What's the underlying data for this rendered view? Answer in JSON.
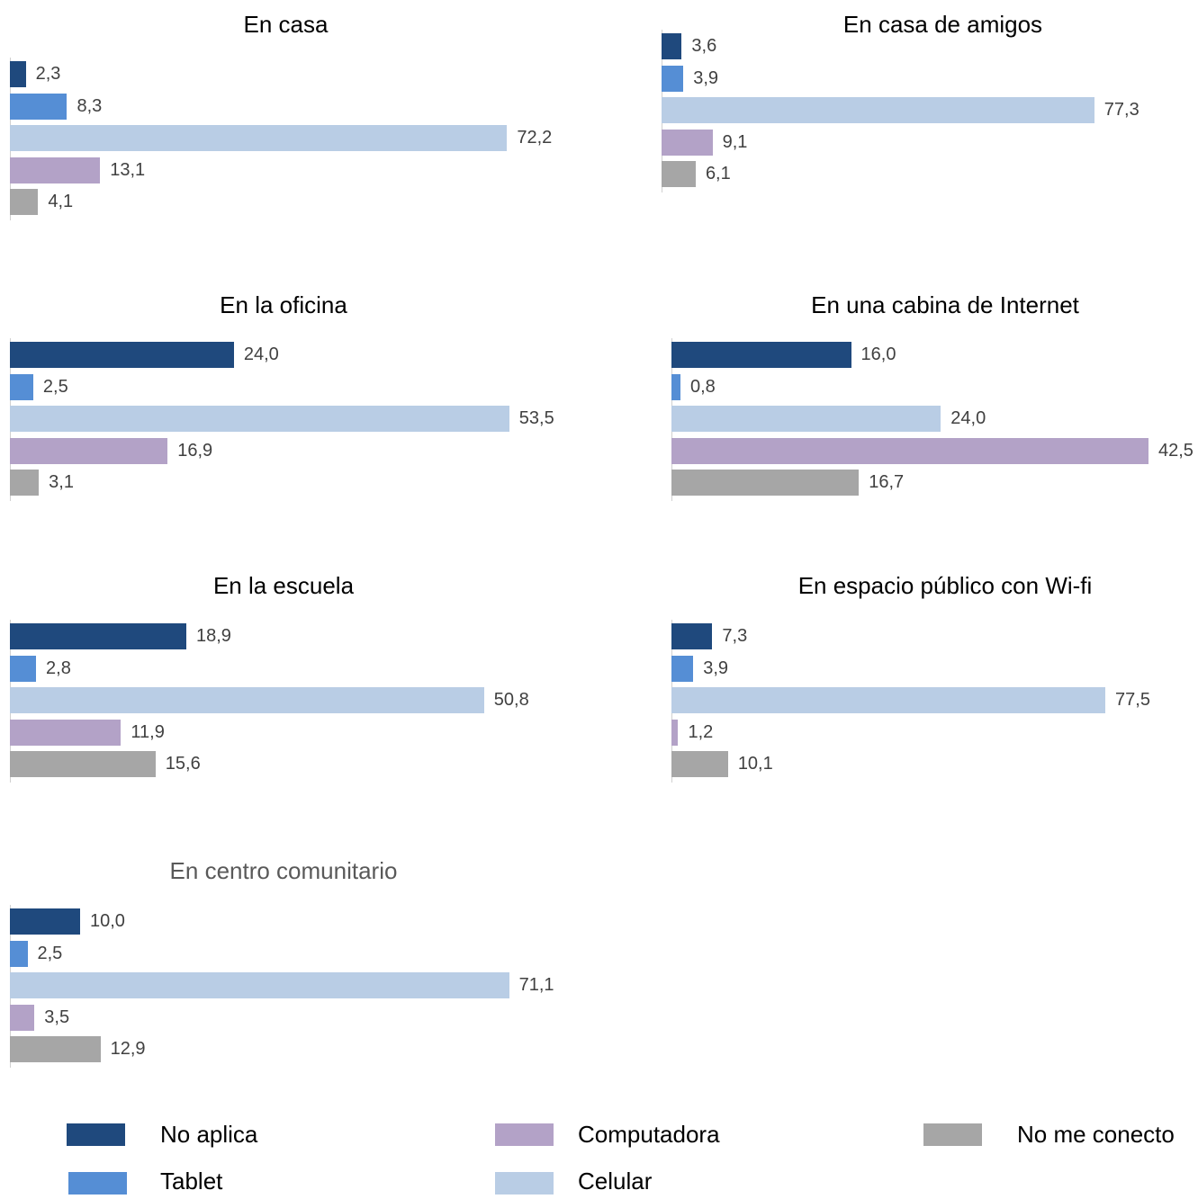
{
  "colors": {
    "No aplica": "#1f497d",
    "Tablet": "#558ed5",
    "Celular": "#b9cde5",
    "Computadora": "#b3a2c7",
    "No me conecto": "#a6a6a6"
  },
  "legend": {
    "items": [
      {
        "label": "No aplica",
        "color": "#1f497d"
      },
      {
        "label": "Tablet",
        "color": "#558ed5"
      },
      {
        "label": "Computadora",
        "color": "#b3a2c7"
      },
      {
        "label": "Celular",
        "color": "#b9cde5"
      },
      {
        "label": "No me conecto",
        "color": "#a6a6a6"
      }
    ]
  },
  "chart_data": [
    {
      "type": "bar",
      "orientation": "horizontal",
      "title": "En casa",
      "categories": [
        "No aplica",
        "Tablet",
        "Celular",
        "Computadora",
        "No me conecto"
      ],
      "values": [
        2.3,
        8.3,
        72.2,
        13.1,
        4.1
      ],
      "labels": [
        "2,3",
        "8,3",
        "72,2",
        "13,1",
        "4,1"
      ]
    },
    {
      "type": "bar",
      "orientation": "horizontal",
      "title": "En casa de amigos",
      "categories": [
        "No aplica",
        "Tablet",
        "Celular",
        "Computadora",
        "No me conecto"
      ],
      "values": [
        3.6,
        3.9,
        77.3,
        9.1,
        6.1
      ],
      "labels": [
        "3,6",
        "3,9",
        "77,3",
        "9,1",
        "6,1"
      ]
    },
    {
      "type": "bar",
      "orientation": "horizontal",
      "title": "En la oficina",
      "categories": [
        "No aplica",
        "Tablet",
        "Celular",
        "Computadora",
        "No me conecto"
      ],
      "values": [
        24.0,
        2.5,
        53.5,
        16.9,
        3.1
      ],
      "labels": [
        "24,0",
        "2,5",
        "53,5",
        "16,9",
        "3,1"
      ]
    },
    {
      "type": "bar",
      "orientation": "horizontal",
      "title": "En una cabina de Internet",
      "categories": [
        "No aplica",
        "Tablet",
        "Celular",
        "Computadora",
        "No me conecto"
      ],
      "values": [
        16.0,
        0.8,
        24.0,
        42.5,
        16.7
      ],
      "labels": [
        "16,0",
        "0,8",
        "24,0",
        "42,5",
        "16,7"
      ]
    },
    {
      "type": "bar",
      "orientation": "horizontal",
      "title": "En la escuela",
      "categories": [
        "No aplica",
        "Tablet",
        "Celular",
        "Computadora",
        "No me conecto"
      ],
      "values": [
        18.9,
        2.8,
        50.8,
        11.9,
        15.6
      ],
      "labels": [
        "18,9",
        "2,8",
        "50,8",
        "11,9",
        "15,6"
      ]
    },
    {
      "type": "bar",
      "orientation": "horizontal",
      "title": "En espacio público con Wi-fi",
      "categories": [
        "No aplica",
        "Tablet",
        "Celular",
        "Computadora",
        "No me conecto"
      ],
      "values": [
        7.3,
        3.9,
        77.5,
        1.2,
        10.1
      ],
      "labels": [
        "7,3",
        "3,9",
        "77,5",
        "1,2",
        "10,1"
      ]
    },
    {
      "type": "bar",
      "orientation": "horizontal",
      "title": "En centro comunitario",
      "categories": [
        "No aplica",
        "Tablet",
        "Celular",
        "Computadora",
        "No me conecto"
      ],
      "values": [
        10.0,
        2.5,
        71.1,
        3.5,
        12.9
      ],
      "labels": [
        "10,0",
        "2,5",
        "71,1",
        "3,5",
        "12,9"
      ]
    }
  ]
}
